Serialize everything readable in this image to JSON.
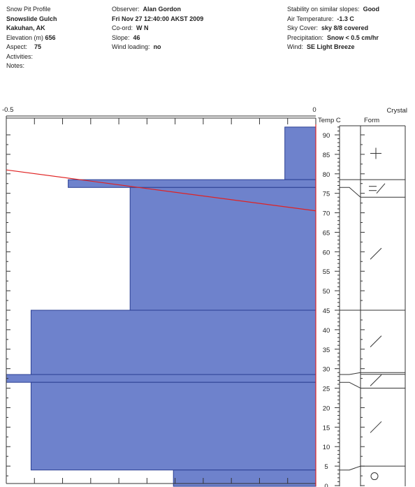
{
  "header": {
    "col1": {
      "title": "Snow Pit Profile",
      "location": "Snowslide Gulch",
      "region": "Kakuhan, AK",
      "elevation_label": "Elevation (m)",
      "elevation_value": "656",
      "aspect_label": "Aspect:",
      "aspect_value": "75",
      "activities_label": "Activities:",
      "notes_label": "Notes:"
    },
    "col2": {
      "observer_label": "Observer:",
      "observer_value": "Alan Gordon",
      "datetime": "Fri Nov 27 12:40:00 AKST 2009",
      "coord_label": "Co-ord:",
      "coord_value": "W N",
      "slope_label": "Slope:",
      "slope_value": "46",
      "wind_loading_label": "Wind loading:",
      "wind_loading_value": "no"
    },
    "col3": {
      "stability_label": "Stability on similar slopes:",
      "stability_value": "Good",
      "air_temp_label": "Air Temperature:",
      "air_temp_value": "-1.3 C",
      "sky_label": "Sky Cover:",
      "sky_value": "sky 8/8 covered",
      "precip_label": "Precipitation:",
      "precip_value": "Snow < 0.5 cm/hr",
      "wind_label": "Wind:",
      "wind_value": "SE Light Breeze"
    }
  },
  "colors": {
    "bar_fill": "#6e82cc",
    "bar_stroke": "#2b3f93",
    "temp_line": "#e02222",
    "axis": "#333333"
  },
  "chart_data": {
    "type": "bar",
    "orientation": "horizontal",
    "x_axis": {
      "min_label": "-0.5",
      "max_label": "0",
      "range": [
        -0.5,
        0
      ]
    },
    "y_axis": {
      "label": "Temp C",
      "range": [
        0,
        90
      ],
      "ticks": [
        90,
        85,
        80,
        75,
        70,
        65,
        60,
        55,
        50,
        45,
        40,
        35,
        30,
        25,
        20,
        15,
        10,
        5,
        0
      ]
    },
    "crystal_form_label": "Crystal Form",
    "hardness_bars": [
      {
        "top": 92,
        "bottom": 78.5,
        "value": -0.05
      },
      {
        "top": 78.5,
        "bottom": 76.5,
        "value": -0.4
      },
      {
        "top": 76.5,
        "bottom": 45,
        "value": -0.3
      },
      {
        "top": 45,
        "bottom": 28.5,
        "value": -0.46
      },
      {
        "top": 28.5,
        "bottom": 26.5,
        "value": -0.5
      },
      {
        "top": 26.5,
        "bottom": 4,
        "value": -0.46
      },
      {
        "top": 4,
        "bottom": -2,
        "value": -0.23
      }
    ],
    "temperature_profile": [
      {
        "height": 81,
        "temp": -0.5
      },
      {
        "height": 70.5,
        "temp": 0
      }
    ],
    "crystal_layers": [
      {
        "top": 92,
        "bottom": 78.5,
        "form": "+"
      },
      {
        "top": 78.5,
        "bottom": 74,
        "form": "=/"
      },
      {
        "top": 74,
        "bottom": 45,
        "form": "/"
      },
      {
        "top": 45,
        "bottom": 29,
        "form": "/"
      },
      {
        "top": 29,
        "bottom": 25,
        "form": "/"
      },
      {
        "top": 25,
        "bottom": 5,
        "form": "/"
      },
      {
        "top": 5,
        "bottom": -2,
        "form": "o"
      }
    ]
  }
}
